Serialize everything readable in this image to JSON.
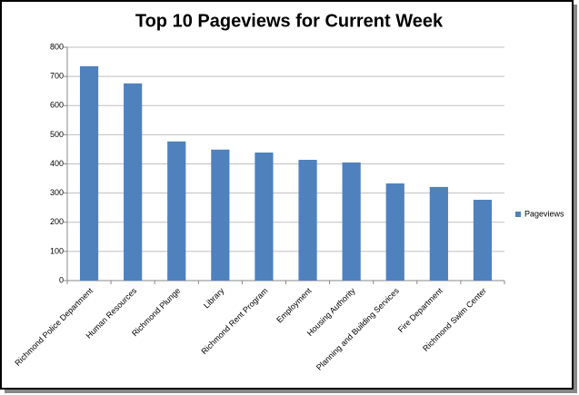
{
  "chart_data": {
    "type": "bar",
    "title": "Top 10 Pageviews for Current Week",
    "categories": [
      "Richmond Police Department",
      "Human Resources",
      "Richmond Plunge",
      "Library",
      "Richmond Rent Program",
      "Employment",
      "Housing Authority",
      "Planning and Building Services",
      "Fire Department",
      "Richmond Swim Center"
    ],
    "series": [
      {
        "name": "Pageviews",
        "color": "#4f81bd",
        "values": [
          735,
          676,
          477,
          449,
          439,
          414,
          405,
          333,
          321,
          277
        ]
      }
    ],
    "ylim": [
      0,
      800
    ],
    "yticks": [
      0,
      100,
      200,
      300,
      400,
      500,
      600,
      700,
      800
    ],
    "grid": true,
    "legend": "right"
  }
}
